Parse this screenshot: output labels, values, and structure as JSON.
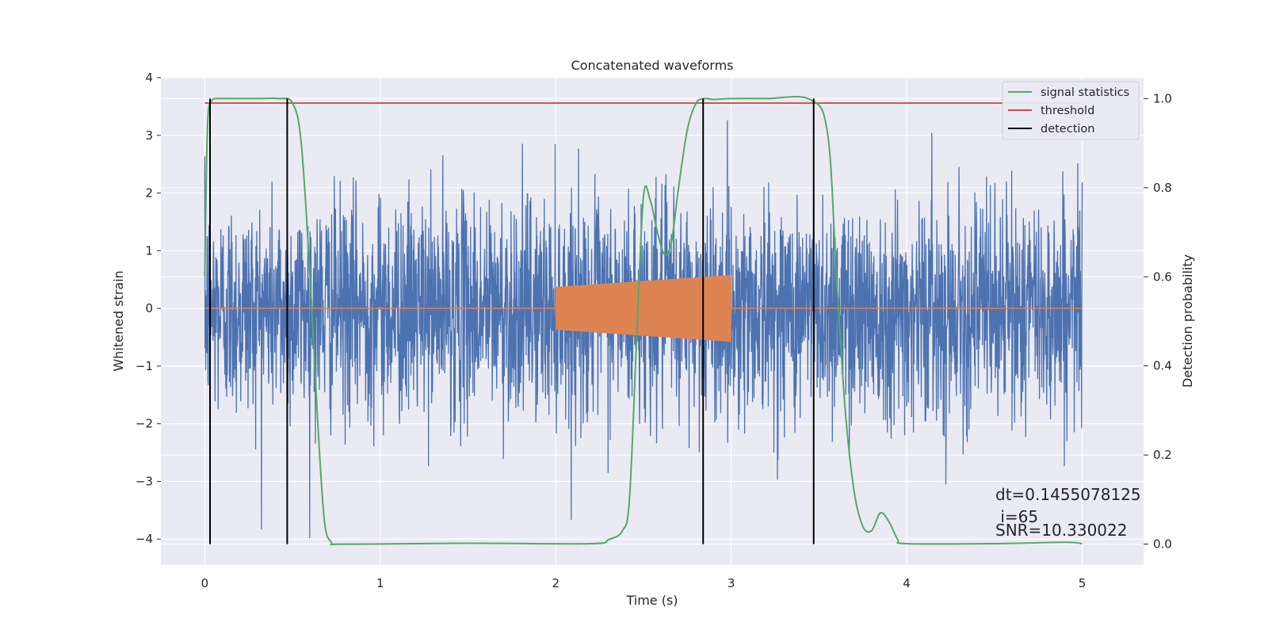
{
  "chart_data": {
    "type": "line",
    "title": "Concatenated waveforms",
    "xlabel": "Time (s)",
    "ylabel": "Whitened strain",
    "ylabel_right": "Detection probability",
    "xlim": [
      -0.25,
      5.35
    ],
    "ylim_left": [
      -4.45,
      4.0
    ],
    "ylim_right": [
      -0.047,
      1.047
    ],
    "x_ticks": [
      0,
      1,
      2,
      3,
      4,
      5
    ],
    "y_ticks_left": [
      4,
      3,
      2,
      1,
      0,
      -1,
      -2,
      -3,
      -4
    ],
    "y_ticks_right": [
      1.0,
      0.8,
      0.6,
      0.4,
      0.2,
      0.0
    ],
    "grid": true,
    "legend_position": "top-right",
    "series": [
      {
        "name": "",
        "axis": "left",
        "color": "#4c72b0",
        "kind": "noise",
        "x_range": [
          0,
          5
        ],
        "noise_std": 0.95,
        "min": -4.25,
        "max": 3.6
      },
      {
        "name": "",
        "axis": "left",
        "color": "#dd8452",
        "kind": "chirp",
        "x_range": [
          2.0,
          3.0
        ],
        "amplitude_start": 0.37,
        "amplitude_end": 0.58
      },
      {
        "name": "signal statistics",
        "axis": "right",
        "color": "#55a868",
        "x": [
          0.0,
          0.01,
          0.02,
          0.04,
          0.06,
          0.1,
          0.3,
          0.42,
          0.5,
          0.55,
          0.6,
          0.64,
          0.68,
          0.72,
          0.8,
          1.5,
          2.2,
          2.3,
          2.38,
          2.42,
          2.46,
          2.5,
          2.54,
          2.58,
          2.62,
          2.66,
          2.7,
          2.75,
          2.8,
          2.85,
          2.9,
          3.0,
          3.2,
          3.45,
          3.55,
          3.6,
          3.65,
          3.7,
          3.75,
          3.8,
          3.85,
          3.9,
          3.95,
          4.0,
          4.5,
          4.9,
          5.0
        ],
        "y": [
          0.6,
          0.85,
          0.97,
          0.995,
          1.0,
          1.0,
          1.0,
          1.0,
          0.99,
          0.9,
          0.6,
          0.3,
          0.06,
          0.005,
          0.0,
          0.002,
          0.001,
          0.01,
          0.03,
          0.1,
          0.45,
          0.78,
          0.77,
          0.7,
          0.65,
          0.68,
          0.8,
          0.93,
          0.99,
          1.0,
          0.998,
          1.0,
          1.0,
          0.998,
          0.92,
          0.6,
          0.3,
          0.12,
          0.04,
          0.03,
          0.07,
          0.05,
          0.01,
          0.001,
          0.001,
          0.004,
          0.001
        ]
      },
      {
        "name": "threshold",
        "axis": "right",
        "color": "#c44e52",
        "x": [
          0,
          5
        ],
        "y": [
          0.99,
          0.99
        ]
      },
      {
        "name": "detection",
        "axis": "right",
        "color": "#000000",
        "kind": "vlines",
        "x": [
          0.03,
          0.47,
          2.84,
          3.47
        ],
        "y_range": [
          0.0,
          1.0
        ]
      }
    ],
    "annotations": [
      "dt=0.1455078125",
      " i=65",
      "SNR=10.330022"
    ]
  }
}
